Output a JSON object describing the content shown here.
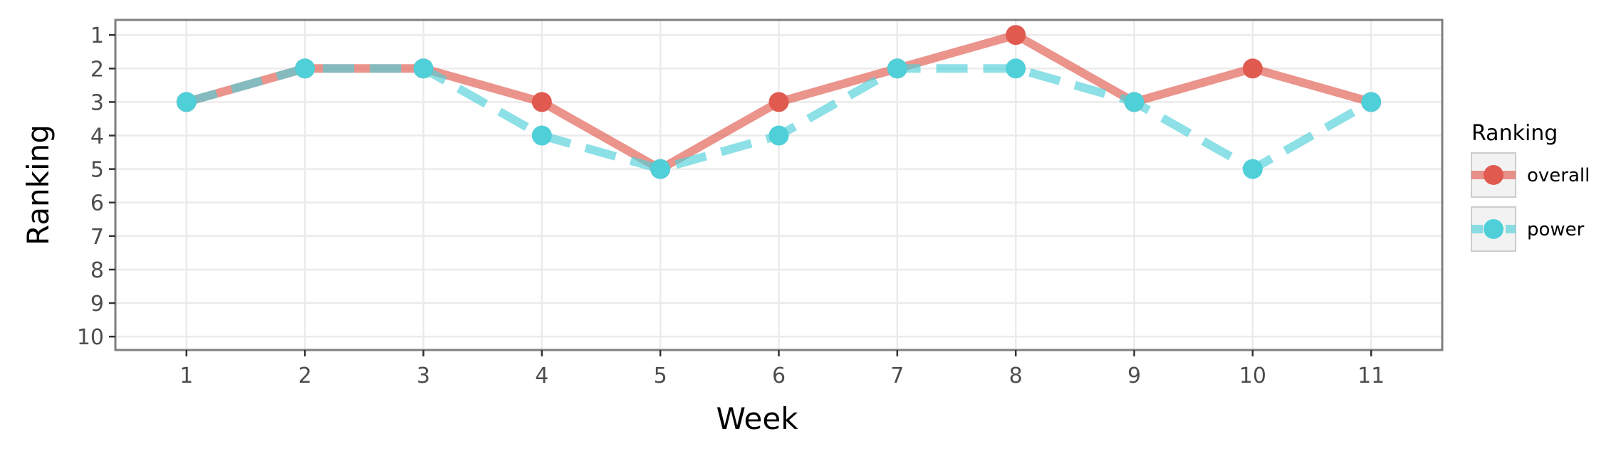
{
  "chart_data": {
    "type": "line",
    "title": "",
    "xlabel": "Week",
    "ylabel": "Ranking",
    "x": [
      1,
      2,
      3,
      4,
      5,
      6,
      7,
      8,
      9,
      10,
      11
    ],
    "x_ticks": [
      "1",
      "2",
      "3",
      "4",
      "5",
      "6",
      "7",
      "8",
      "9",
      "10",
      "11"
    ],
    "y_ticks": [
      "1",
      "2",
      "3",
      "4",
      "5",
      "6",
      "7",
      "8",
      "9",
      "10"
    ],
    "xlim": [
      0.4,
      11.6
    ],
    "ylim": [
      10.4,
      0.55
    ],
    "y_reversed": true,
    "grid": true,
    "legend": {
      "title": "Ranking",
      "position": "right"
    },
    "series": [
      {
        "name": "overall",
        "values": [
          3,
          2,
          2,
          3,
          5,
          3,
          2,
          1,
          3,
          2,
          3
        ],
        "color": "#e05a4f",
        "line_style": "solid"
      },
      {
        "name": "power",
        "values": [
          3,
          2,
          2,
          4,
          5,
          4,
          2,
          2,
          3,
          5,
          3
        ],
        "color": "#4fd0d9",
        "line_style": "dashed"
      }
    ]
  }
}
